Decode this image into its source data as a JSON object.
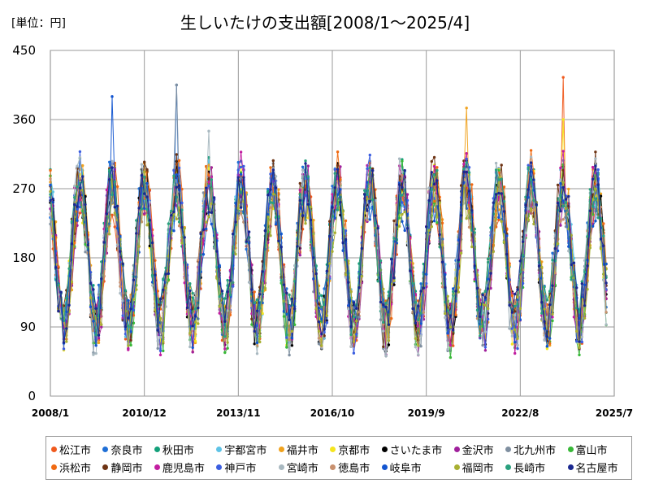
{
  "unit_label": "[単位：円]",
  "chart_data": {
    "type": "line",
    "title": "生しいたけの支出額[2008/1～2025/4]",
    "xlabel": "",
    "ylabel": "",
    "ylim": [
      0,
      450
    ],
    "yticks": [
      0,
      90,
      180,
      270,
      360,
      450
    ],
    "xticks": [
      "2008/1",
      "2010/12",
      "2013/11",
      "2016/10",
      "2019/9",
      "2022/8",
      "2025/7"
    ],
    "x_range": [
      "2008/1",
      "2025/7"
    ],
    "grid": true,
    "legend_position": "bottom",
    "seasonal_pattern": {
      "peak_month": 12,
      "typical_peak_range": [
        270,
        340
      ],
      "typical_trough_range": [
        70,
        110
      ],
      "note": "Annual cycle: high in December, low in summer"
    },
    "series": [
      {
        "name": "松江市",
        "color": "#f05a1e",
        "notable_max": 415
      },
      {
        "name": "奈良市",
        "color": "#1f6fd6",
        "notable_max": 405
      },
      {
        "name": "秋田市",
        "color": "#13a07a"
      },
      {
        "name": "宇都宮市",
        "color": "#5ec3e6"
      },
      {
        "name": "福井市",
        "color": "#f0a21e",
        "notable_max": 375
      },
      {
        "name": "京都市",
        "color": "#f5e51e",
        "notable_max": 360
      },
      {
        "name": "さいたま市",
        "color": "#000000"
      },
      {
        "name": "金沢市",
        "color": "#a0209c"
      },
      {
        "name": "北九州市",
        "color": "#7f8fa0",
        "notable_max": 405
      },
      {
        "name": "富山市",
        "color": "#38b838"
      },
      {
        "name": "浜松市",
        "color": "#f06a12"
      },
      {
        "name": "静岡市",
        "color": "#6e3414"
      },
      {
        "name": "鹿児島市",
        "color": "#c21ea0"
      },
      {
        "name": "神戸市",
        "color": "#3b5ee0"
      },
      {
        "name": "宮崎市",
        "color": "#a8b8c0",
        "notable_max": 345
      },
      {
        "name": "徳島市",
        "color": "#c8906e"
      },
      {
        "name": "岐阜市",
        "color": "#1255d0",
        "notable_max": 390
      },
      {
        "name": "福岡市",
        "color": "#a8b032"
      },
      {
        "name": "長崎市",
        "color": "#2aa07e"
      },
      {
        "name": "名古屋市",
        "color": "#1a2890"
      }
    ]
  }
}
